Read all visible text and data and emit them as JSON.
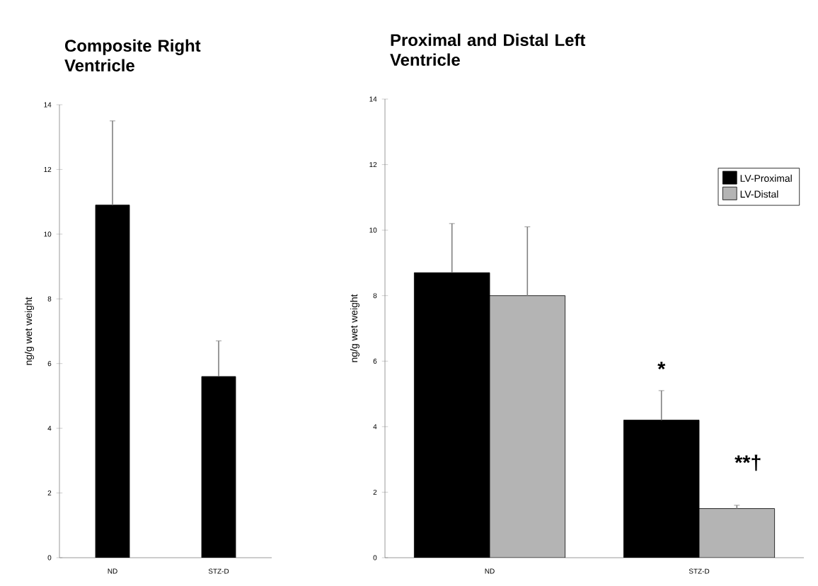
{
  "chart_data": [
    {
      "type": "bar",
      "title": "Composite Right Ventricle",
      "ylabel": "ng/g wet weight",
      "categories": [
        "ND",
        "STZ-D"
      ],
      "series": [
        {
          "color": "#000000",
          "values": [
            10.9,
            5.6
          ],
          "errors": [
            2.6,
            1.1
          ]
        }
      ],
      "ylim": [
        0,
        14
      ],
      "yticks": [
        0,
        2,
        4,
        6,
        8,
        10,
        12,
        14
      ],
      "grid": false,
      "legend": false
    },
    {
      "type": "bar",
      "title": "Proximal and Distal Left Ventricle",
      "ylabel": "ng/g wet weight",
      "categories": [
        "ND",
        "STZ-D"
      ],
      "series": [
        {
          "name": "LV-Proximal",
          "color": "#000000",
          "values": [
            8.7,
            4.2
          ],
          "errors": [
            1.5,
            0.9
          ]
        },
        {
          "name": "LV-Distal",
          "color": "#b4b4b4",
          "values": [
            8.0,
            1.5
          ],
          "errors": [
            2.1,
            0.1
          ]
        }
      ],
      "ylim": [
        0,
        14
      ],
      "yticks": [
        0,
        2,
        4,
        6,
        8,
        10,
        12,
        14
      ],
      "grid": false,
      "legend": "top right",
      "annotations": [
        "*",
        "**†"
      ]
    }
  ]
}
